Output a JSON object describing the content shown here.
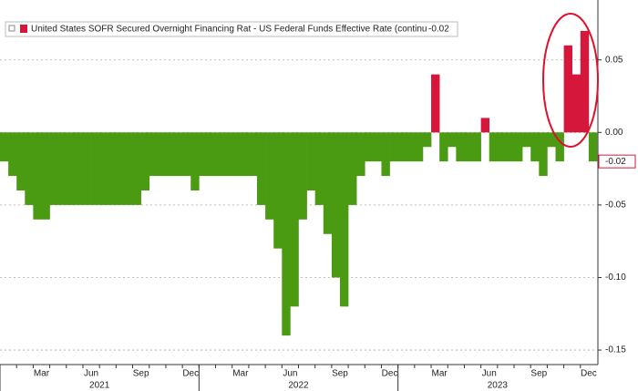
{
  "chart_data": {
    "type": "bar",
    "legend": "United States SOFR Secured Overnight Financing Rat - US Federal Funds Effective Rate (continu",
    "last_value_label": "-0.02",
    "positive_color": "#d4173a",
    "negative_color": "#4a9a12",
    "categories": [
      null,
      null,
      null,
      null,
      "Mar",
      null,
      null,
      null,
      null,
      null,
      "Jun",
      null,
      null,
      null,
      null,
      null,
      "Sep",
      null,
      null,
      null,
      null,
      null,
      "Dec",
      null,
      null,
      null,
      null,
      null,
      "Mar",
      null,
      null,
      null,
      null,
      null,
      "Jun",
      null,
      null,
      null,
      null,
      null,
      "Sep",
      null,
      null,
      null,
      null,
      null,
      "Dec",
      null,
      null,
      null,
      null,
      null,
      "Mar",
      null,
      null,
      null,
      null,
      null,
      "Jun",
      null,
      null,
      null,
      null,
      null,
      "Sep",
      null,
      null,
      null,
      null,
      null,
      "Dec",
      null
    ],
    "year_labels": [
      "2021",
      "2022",
      "2023"
    ],
    "values": [
      -0.02,
      -0.03,
      -0.04,
      -0.05,
      -0.06,
      -0.06,
      -0.05,
      -0.05,
      -0.05,
      -0.05,
      -0.05,
      -0.05,
      -0.05,
      -0.05,
      -0.05,
      -0.05,
      -0.05,
      -0.04,
      -0.03,
      -0.03,
      -0.03,
      -0.03,
      -0.03,
      -0.04,
      -0.03,
      -0.03,
      -0.03,
      -0.03,
      -0.03,
      -0.03,
      -0.03,
      -0.05,
      -0.06,
      -0.08,
      -0.14,
      -0.12,
      -0.06,
      -0.04,
      -0.05,
      -0.07,
      -0.1,
      -0.12,
      -0.05,
      -0.03,
      -0.02,
      -0.02,
      -0.03,
      -0.02,
      -0.02,
      -0.02,
      -0.02,
      -0.01,
      0.04,
      -0.02,
      -0.01,
      -0.02,
      -0.02,
      -0.02,
      0.01,
      -0.02,
      -0.02,
      -0.02,
      -0.02,
      -0.01,
      -0.02,
      -0.03,
      -0.01,
      -0.02,
      0.06,
      0.04,
      0.07,
      -0.02
    ],
    "ylim": [
      -0.16,
      0.085
    ],
    "yticks": [
      {
        "value": 0.05,
        "label": "0.05"
      },
      {
        "value": 0,
        "label": "0.00"
      },
      {
        "value": -0.05,
        "label": "-0.05"
      },
      {
        "value": -0.1,
        "label": "-0.10"
      },
      {
        "value": -0.15,
        "label": "-0.15"
      }
    ],
    "grid": true
  }
}
